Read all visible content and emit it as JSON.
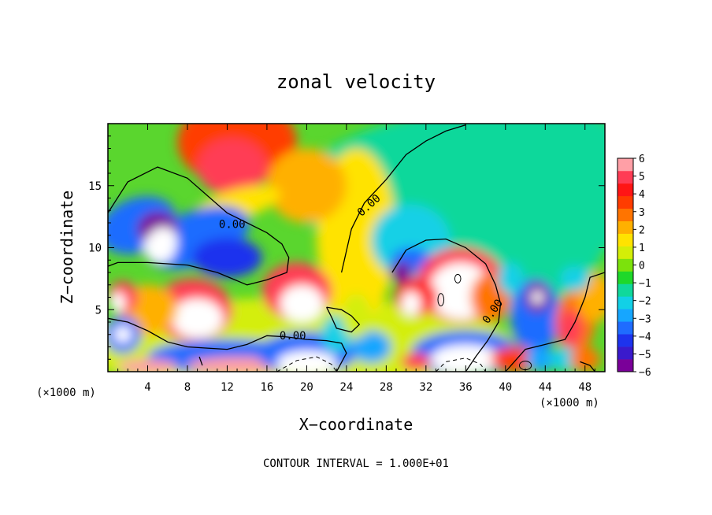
{
  "chart_data": {
    "type": "heatmap",
    "title": "zonal velocity",
    "xlabel": "X−coordinate",
    "ylabel": "Z−coordinate",
    "x_unit": "(×1000 m)",
    "xlim": [
      0,
      50
    ],
    "ylim": [
      0,
      20
    ],
    "x_ticks": [
      "4",
      "8",
      "12",
      "16",
      "20",
      "24",
      "28",
      "32",
      "36",
      "40",
      "44",
      "48"
    ],
    "y_ticks": [
      "5",
      "10",
      "15"
    ],
    "colorbar": {
      "min": -6,
      "max": 6,
      "ticks": [
        "6",
        "5",
        "4",
        "3",
        "2",
        "1",
        "0",
        "−1",
        "−2",
        "−3",
        "−4",
        "−5",
        "−6"
      ],
      "colors": [
        "#7a0099",
        "#3a1acc",
        "#1d33ee",
        "#1f6cff",
        "#16a6ff",
        "#12d0e6",
        "#10d89b",
        "#1ed82a",
        "#7ce20c",
        "#d4ee08",
        "#ffe300",
        "#ffb000",
        "#ff7400",
        "#ff3c00",
        "#ff1515",
        "#ff3c55",
        "#ff9fa6"
      ]
    },
    "contour_labels": [
      {
        "text": "0.00",
        "x": 12.5,
        "z": 11.6
      },
      {
        "text": "0.00",
        "x": 26.5,
        "z": 13.2
      },
      {
        "text": "0.00",
        "x": 18.6,
        "z": 2.6
      },
      {
        "text": "0.00",
        "x": 39.0,
        "z": 4.7
      }
    ],
    "footer": "CONTOUR INTERVAL = 1.000E+01"
  }
}
